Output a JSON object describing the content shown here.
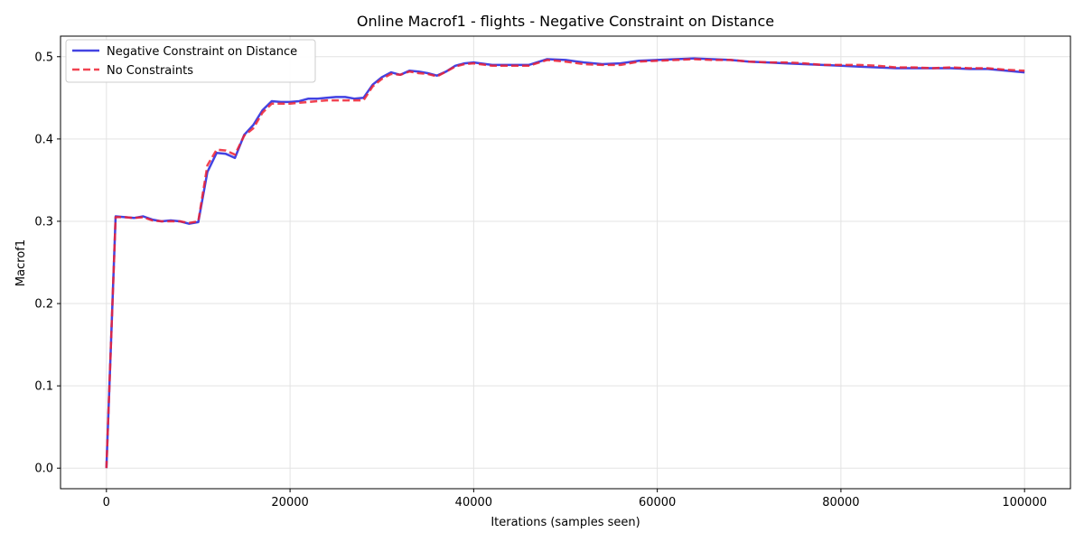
{
  "chart_data": {
    "type": "line",
    "title": "Online Macrof1 - flights - Negative Constraint on Distance",
    "xlabel": "Iterations (samples seen)",
    "ylabel": "Macrof1",
    "xlim": [
      -5000,
      105000
    ],
    "ylim": [
      -0.025,
      0.525
    ],
    "x_ticks": [
      0,
      20000,
      40000,
      60000,
      80000,
      100000
    ],
    "x_tick_labels": [
      "0",
      "20000",
      "40000",
      "60000",
      "80000",
      "100000"
    ],
    "y_ticks": [
      0.0,
      0.1,
      0.2,
      0.3,
      0.4,
      0.5
    ],
    "y_tick_labels": [
      "0.0",
      "0.1",
      "0.2",
      "0.3",
      "0.4",
      "0.5"
    ],
    "grid": true,
    "legend_position": "upper-left",
    "series": [
      {
        "name": "Negative Constraint on Distance",
        "color": "#2222dd",
        "style": "solid",
        "x": [
          0,
          1000,
          2000,
          3000,
          4000,
          5000,
          6000,
          7000,
          8000,
          9000,
          10000,
          11000,
          12000,
          13000,
          14000,
          15000,
          16000,
          17000,
          18000,
          19000,
          20000,
          21000,
          22000,
          23000,
          24000,
          25000,
          26000,
          27000,
          28000,
          29000,
          30000,
          31000,
          32000,
          33000,
          34000,
          35000,
          36000,
          37000,
          38000,
          39000,
          40000,
          42000,
          44000,
          46000,
          48000,
          50000,
          52000,
          54000,
          56000,
          58000,
          60000,
          62000,
          64000,
          66000,
          68000,
          70000,
          72000,
          74000,
          76000,
          78000,
          80000,
          82000,
          84000,
          86000,
          88000,
          90000,
          92000,
          94000,
          96000,
          98000,
          100000
        ],
        "y": [
          0.0,
          0.306,
          0.305,
          0.304,
          0.306,
          0.302,
          0.3,
          0.301,
          0.3,
          0.297,
          0.299,
          0.36,
          0.383,
          0.382,
          0.377,
          0.405,
          0.417,
          0.435,
          0.446,
          0.445,
          0.445,
          0.446,
          0.449,
          0.449,
          0.45,
          0.451,
          0.451,
          0.449,
          0.45,
          0.466,
          0.475,
          0.481,
          0.478,
          0.483,
          0.482,
          0.48,
          0.477,
          0.482,
          0.489,
          0.492,
          0.493,
          0.49,
          0.49,
          0.49,
          0.497,
          0.496,
          0.493,
          0.491,
          0.492,
          0.495,
          0.496,
          0.497,
          0.498,
          0.497,
          0.496,
          0.494,
          0.493,
          0.492,
          0.491,
          0.49,
          0.489,
          0.488,
          0.487,
          0.486,
          0.486,
          0.486,
          0.486,
          0.485,
          0.485,
          0.483,
          0.481
        ]
      },
      {
        "name": "No Constraints",
        "color": "#ee2233",
        "style": "dashed",
        "x": [
          0,
          1000,
          2000,
          3000,
          4000,
          5000,
          6000,
          7000,
          8000,
          9000,
          10000,
          11000,
          12000,
          13000,
          14000,
          15000,
          16000,
          17000,
          18000,
          19000,
          20000,
          21000,
          22000,
          23000,
          24000,
          25000,
          26000,
          27000,
          28000,
          29000,
          30000,
          31000,
          32000,
          33000,
          34000,
          35000,
          36000,
          37000,
          38000,
          39000,
          40000,
          42000,
          44000,
          46000,
          48000,
          50000,
          52000,
          54000,
          56000,
          58000,
          60000,
          62000,
          64000,
          66000,
          68000,
          70000,
          72000,
          74000,
          76000,
          78000,
          80000,
          82000,
          84000,
          86000,
          88000,
          90000,
          92000,
          94000,
          96000,
          98000,
          100000
        ],
        "y": [
          0.0,
          0.305,
          0.305,
          0.304,
          0.305,
          0.301,
          0.3,
          0.3,
          0.3,
          0.298,
          0.3,
          0.368,
          0.387,
          0.386,
          0.381,
          0.404,
          0.413,
          0.432,
          0.443,
          0.443,
          0.443,
          0.444,
          0.445,
          0.446,
          0.447,
          0.447,
          0.447,
          0.447,
          0.447,
          0.464,
          0.473,
          0.479,
          0.478,
          0.482,
          0.48,
          0.479,
          0.476,
          0.482,
          0.488,
          0.491,
          0.492,
          0.489,
          0.489,
          0.489,
          0.496,
          0.494,
          0.491,
          0.49,
          0.49,
          0.494,
          0.495,
          0.496,
          0.497,
          0.496,
          0.496,
          0.494,
          0.493,
          0.493,
          0.492,
          0.49,
          0.49,
          0.49,
          0.489,
          0.487,
          0.487,
          0.486,
          0.487,
          0.486,
          0.486,
          0.484,
          0.483
        ]
      }
    ]
  }
}
